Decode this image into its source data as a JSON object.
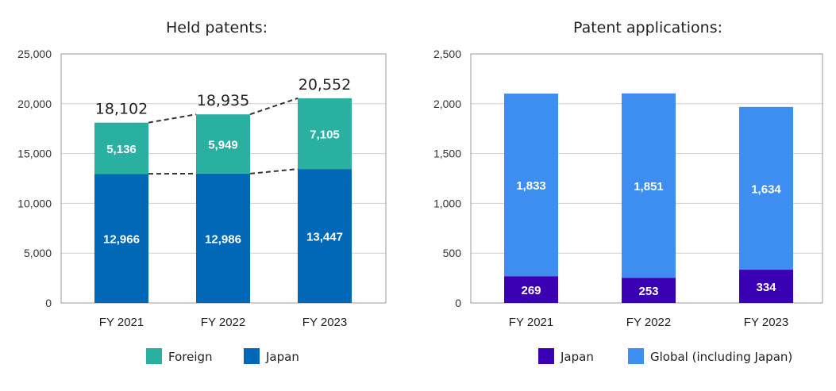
{
  "chart_data": [
    {
      "type": "bar",
      "stacked": true,
      "title": "Held patents:",
      "categories": [
        "FY 2021",
        "FY 2022",
        "FY 2023"
      ],
      "series": [
        {
          "name": "Japan",
          "values": [
            12966,
            12986,
            13447
          ],
          "color": "#0068b7"
        },
        {
          "name": "Foreign",
          "values": [
            5136,
            5949,
            7105
          ],
          "color": "#2ab0a0"
        }
      ],
      "totals": [
        18102,
        18935,
        20552
      ],
      "total_labels": [
        "18,102",
        "18,935",
        "20,552"
      ],
      "value_labels": {
        "Japan": [
          "12,966",
          "12,986",
          "13,447"
        ],
        "Foreign": [
          "5,136",
          "5,949",
          "7,105"
        ]
      },
      "ylim": [
        0,
        25000
      ],
      "yticks": [
        0,
        5000,
        10000,
        15000,
        20000,
        25000
      ],
      "ytick_labels": [
        "0",
        "5,000",
        "10,000",
        "15,000",
        "20,000",
        "25,000"
      ],
      "grid": true,
      "dashed_connectors": true,
      "legend": {
        "placement": "bottom",
        "entries": [
          "Foreign",
          "Japan"
        ]
      }
    },
    {
      "type": "bar",
      "stacked": true,
      "title": "Patent applications:",
      "categories": [
        "FY 2021",
        "FY 2022",
        "FY 2023"
      ],
      "series": [
        {
          "name": "Japan",
          "values": [
            269,
            253,
            334
          ],
          "color": "#3a00b4"
        },
        {
          "name": "Global (including Japan)",
          "values": [
            1833,
            1851,
            1634
          ],
          "color": "#3d8ef0"
        }
      ],
      "value_labels": {
        "Japan": [
          "269",
          "253",
          "334"
        ],
        "Global (including Japan)": [
          "1,833",
          "1,851",
          "1,634"
        ]
      },
      "ylim": [
        0,
        2500
      ],
      "yticks": [
        0,
        500,
        1000,
        1500,
        2000,
        2500
      ],
      "ytick_labels": [
        "0",
        "500",
        "1,000",
        "1,500",
        "2,000",
        "2,500"
      ],
      "grid": true,
      "legend": {
        "placement": "bottom",
        "entries": [
          "Japan",
          "Global (including Japan)"
        ]
      }
    }
  ]
}
